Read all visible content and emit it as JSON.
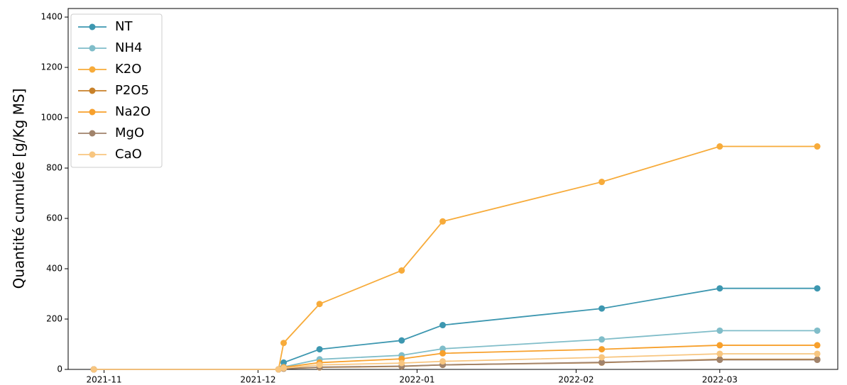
{
  "chart_data": {
    "type": "line",
    "ylabel": "Quantité cumulée [g/Kg MS]",
    "x": [
      "2021-10-30",
      "2021-12-05",
      "2021-12-06",
      "2021-12-13",
      "2021-12-29",
      "2022-01-06",
      "2022-02-06",
      "2022-03-01",
      "2022-03-20"
    ],
    "series": [
      {
        "name": "NT",
        "color": "#3d97b0",
        "values": [
          0,
          0,
          27,
          80,
          115,
          176,
          242,
          322,
          322
        ]
      },
      {
        "name": "NH4",
        "color": "#80bdc9",
        "values": [
          0,
          0,
          10,
          40,
          56,
          82,
          119,
          154,
          154
        ]
      },
      {
        "name": "K2O",
        "color": "#f7ab3a",
        "values": [
          0,
          0,
          105,
          260,
          393,
          588,
          745,
          886,
          886
        ]
      },
      {
        "name": "P2O5",
        "color": "#c8812a",
        "values": [
          0,
          0,
          3,
          8,
          12,
          18,
          27,
          40,
          40
        ]
      },
      {
        "name": "Na2O",
        "color": "#f7a02c",
        "values": [
          0,
          0,
          8,
          27,
          42,
          64,
          80,
          96,
          96
        ]
      },
      {
        "name": "MgO",
        "color": "#a1836b",
        "values": [
          0,
          0,
          3,
          9,
          13,
          18,
          28,
          38,
          38
        ]
      },
      {
        "name": "CaO",
        "color": "#f8c680",
        "values": [
          0,
          0,
          5,
          18,
          25,
          32,
          48,
          62,
          62
        ]
      }
    ],
    "xlim": [
      "2021-10-25",
      "2022-03-24"
    ],
    "xticks": [
      "2021-11",
      "2021-12",
      "2022-01",
      "2022-02",
      "2022-03"
    ],
    "ylim": [
      0,
      1434
    ],
    "yticks": [
      0,
      200,
      400,
      600,
      800,
      1000,
      1200,
      1400
    ],
    "legend": "upper left"
  }
}
